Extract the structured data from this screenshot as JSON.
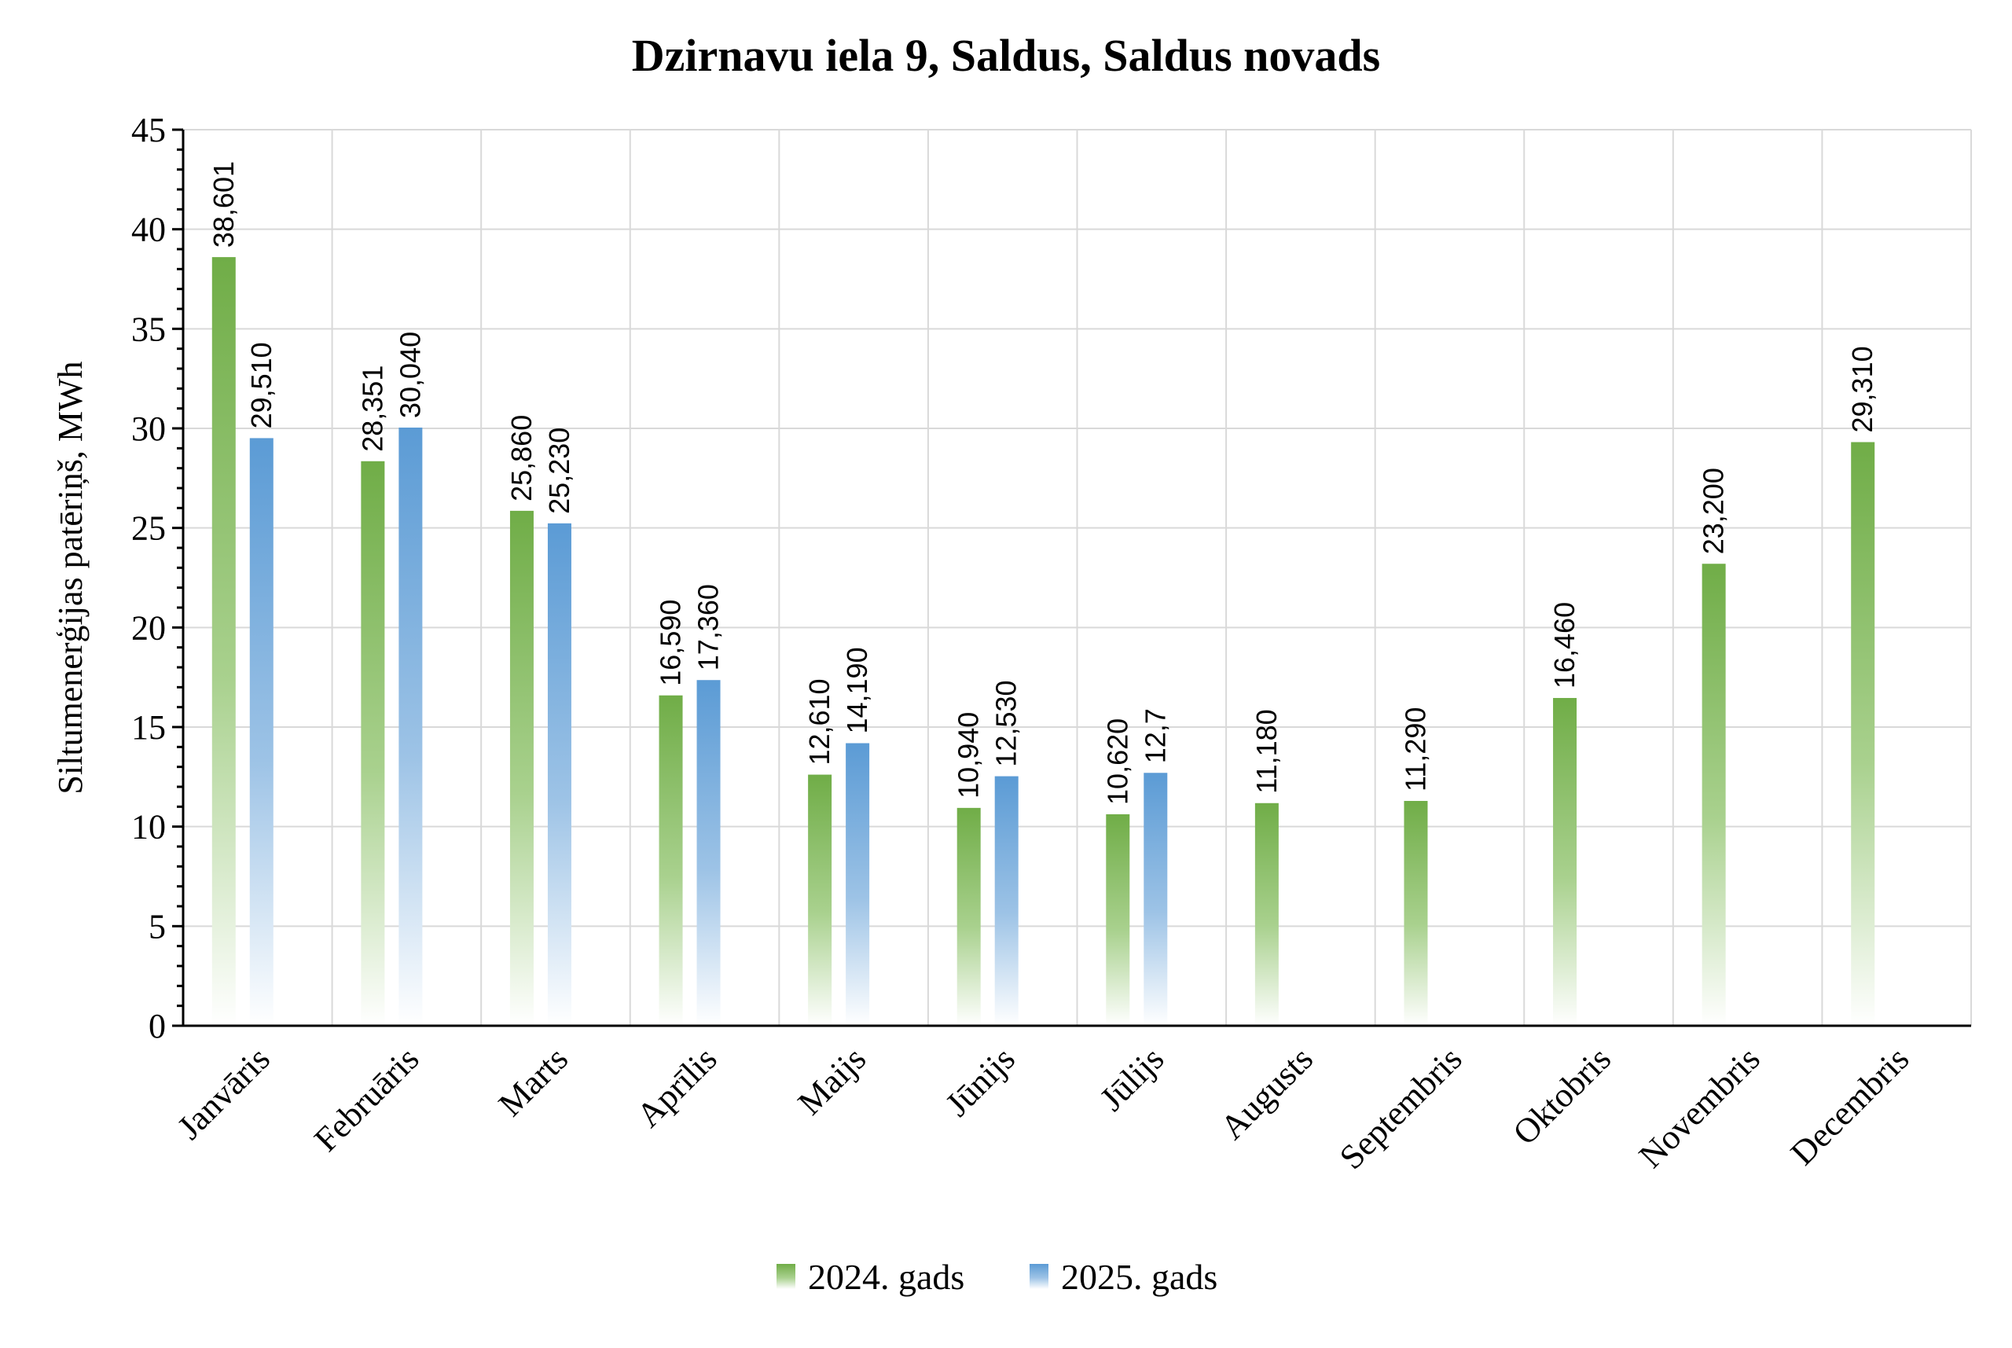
{
  "chart_data": {
    "type": "bar",
    "title": "Dzirnavu iela 9, Saldus, Saldus novads",
    "xlabel": "",
    "ylabel": "Siltumenerģijas patēriņš, MWh",
    "ylim": [
      0,
      45
    ],
    "yticks": [
      "0",
      "5",
      "10",
      "15",
      "20",
      "25",
      "30",
      "35",
      "40",
      "45"
    ],
    "grid": true,
    "legend_position": "bottom",
    "categories": [
      "Janvāris",
      "Februāris",
      "Marts",
      "Aprīlis",
      "Maijs",
      "Jūnijs",
      "Jūlijs",
      "Augusts",
      "Septembris",
      "Oktobris",
      "Novembris",
      "Decembris"
    ],
    "series": [
      {
        "name": "2024. gads",
        "color": "#70ad47",
        "values": [
          38.601,
          28.351,
          25.86,
          16.59,
          12.61,
          10.94,
          10.62,
          11.18,
          11.29,
          16.46,
          23.2,
          29.31
        ],
        "labels": [
          "38,601",
          "28,351",
          "25,860",
          "16,590",
          "12,610",
          "10,940",
          "10,620",
          "11,180",
          "11,290",
          "16,460",
          "23,200",
          "29,310"
        ]
      },
      {
        "name": "2025. gads",
        "color": "#5b9bd5",
        "values": [
          29.51,
          30.04,
          25.23,
          17.36,
          14.19,
          12.53,
          12.7,
          null,
          null,
          null,
          null,
          null
        ],
        "labels": [
          "29,510",
          "30,040",
          "25,230",
          "17,360",
          "14,190",
          "12,530",
          "12,7",
          "",
          "",
          "",
          "",
          ""
        ]
      }
    ]
  }
}
